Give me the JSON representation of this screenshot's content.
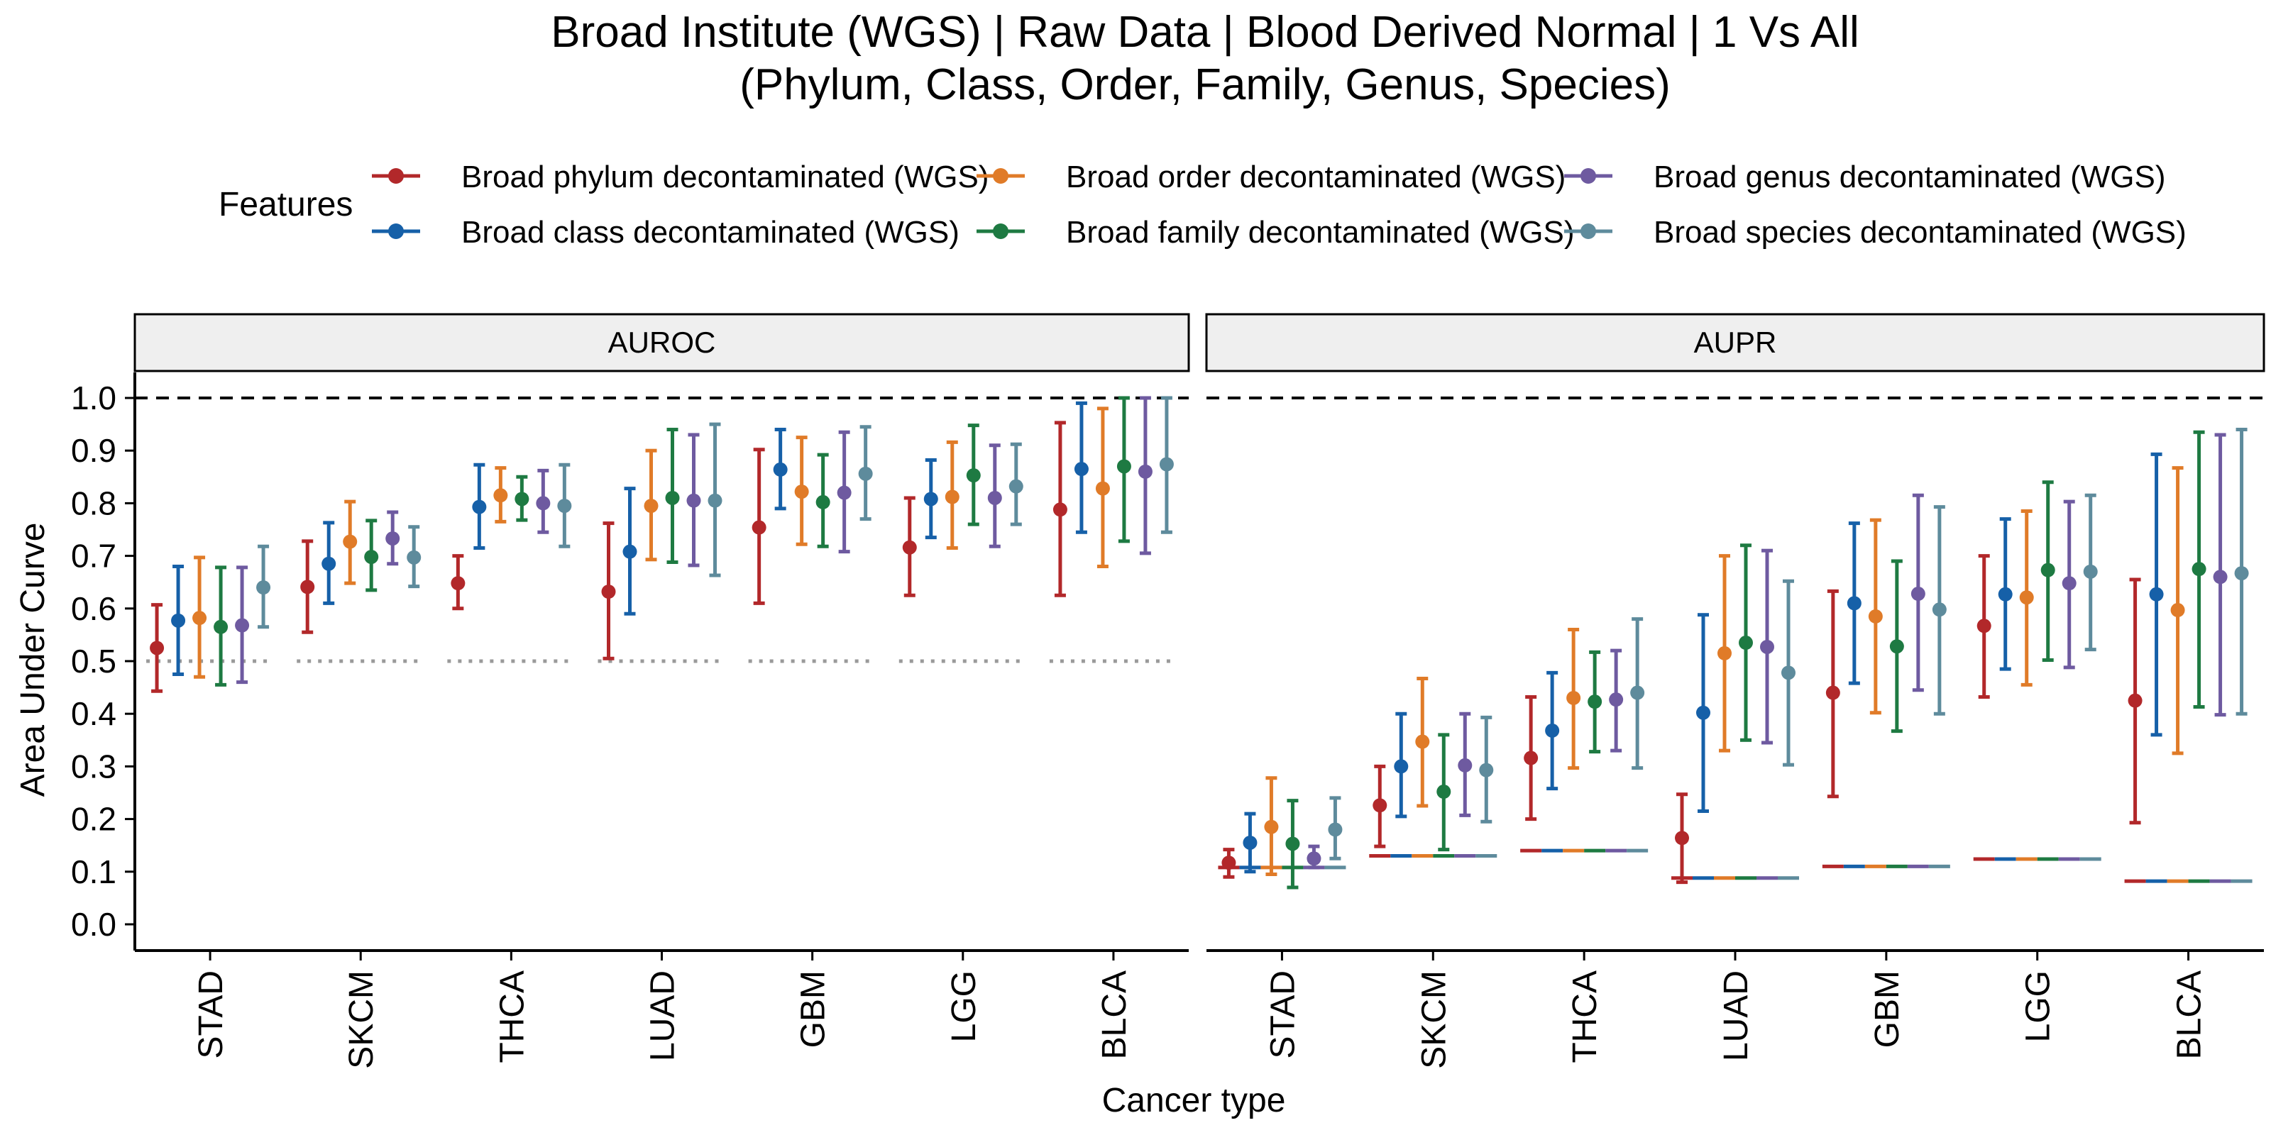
{
  "chart_data": {
    "type": "scatter",
    "title_line1": "Broad Institute (WGS) | Raw Data | Blood Derived Normal | 1 Vs All",
    "title_line2": "(Phylum, Class, Order, Family, Genus, Species)",
    "xlabel": "Cancer type",
    "ylabel": "Area Under Curve",
    "ylim": [
      0,
      1
    ],
    "yticks": [
      "0.0",
      "0.1",
      "0.2",
      "0.3",
      "0.4",
      "0.5",
      "0.6",
      "0.7",
      "0.8",
      "0.9",
      "1.0"
    ],
    "legend_title": "Features",
    "legend_position": "top",
    "categories": [
      "STAD",
      "SKCM",
      "THCA",
      "LUAD",
      "GBM",
      "LGG",
      "BLCA"
    ],
    "series": [
      {
        "name": "Broad phylum decontaminated (WGS)",
        "color": "#B2282A"
      },
      {
        "name": "Broad class decontaminated (WGS)",
        "color": "#1660A8"
      },
      {
        "name": "Broad order decontaminated (WGS)",
        "color": "#E07B28"
      },
      {
        "name": "Broad family decontaminated (WGS)",
        "color": "#1E7A42"
      },
      {
        "name": "Broad genus decontaminated (WGS)",
        "color": "#6E5AA0"
      },
      {
        "name": "Broad species decontaminated (WGS)",
        "color": "#5E8B9C"
      }
    ],
    "reference_line": 1.0,
    "panels": [
      {
        "name": "AUROC",
        "baseline": [
          0.5,
          0.5,
          0.5,
          0.5,
          0.5,
          0.5,
          0.5
        ],
        "values": [
          [
            0.525,
            0.577,
            0.582,
            0.565,
            0.568,
            0.64
          ],
          [
            0.641,
            0.685,
            0.727,
            0.698,
            0.733,
            0.697
          ],
          [
            0.648,
            0.793,
            0.815,
            0.808,
            0.8,
            0.795
          ],
          [
            0.632,
            0.708,
            0.795,
            0.81,
            0.805,
            0.805
          ],
          [
            0.754,
            0.864,
            0.822,
            0.802,
            0.82,
            0.856
          ],
          [
            0.716,
            0.808,
            0.812,
            0.853,
            0.81,
            0.832
          ],
          [
            0.788,
            0.865,
            0.828,
            0.87,
            0.86,
            0.874
          ]
        ],
        "lower": [
          [
            0.443,
            0.475,
            0.47,
            0.455,
            0.46,
            0.565
          ],
          [
            0.555,
            0.61,
            0.648,
            0.635,
            0.685,
            0.642
          ],
          [
            0.6,
            0.715,
            0.765,
            0.768,
            0.745,
            0.718
          ],
          [
            0.505,
            0.59,
            0.693,
            0.688,
            0.682,
            0.663
          ],
          [
            0.61,
            0.79,
            0.722,
            0.718,
            0.708,
            0.77
          ],
          [
            0.625,
            0.735,
            0.715,
            0.76,
            0.718,
            0.76
          ],
          [
            0.625,
            0.745,
            0.68,
            0.728,
            0.705,
            0.745
          ]
        ],
        "upper": [
          [
            0.607,
            0.68,
            0.697,
            0.678,
            0.678,
            0.718
          ],
          [
            0.728,
            0.763,
            0.803,
            0.767,
            0.783,
            0.755
          ],
          [
            0.7,
            0.873,
            0.867,
            0.85,
            0.862,
            0.873
          ],
          [
            0.762,
            0.828,
            0.9,
            0.94,
            0.93,
            0.95
          ],
          [
            0.902,
            0.94,
            0.925,
            0.892,
            0.935,
            0.945
          ],
          [
            0.81,
            0.882,
            0.916,
            0.948,
            0.91,
            0.912
          ],
          [
            0.953,
            0.99,
            0.98,
            1.0,
            1.0,
            1.0
          ]
        ]
      },
      {
        "name": "AUPR",
        "baseline": [
          0.108,
          0.13,
          0.14,
          0.088,
          0.11,
          0.124,
          0.082
        ],
        "values": [
          [
            0.117,
            0.155,
            0.185,
            0.153,
            0.125,
            0.18
          ],
          [
            0.226,
            0.3,
            0.347,
            0.252,
            0.302,
            0.293
          ],
          [
            0.316,
            0.368,
            0.43,
            0.423,
            0.427,
            0.44
          ],
          [
            0.164,
            0.402,
            0.515,
            0.535,
            0.527,
            0.478
          ],
          [
            0.44,
            0.61,
            0.585,
            0.528,
            0.628,
            0.598
          ],
          [
            0.567,
            0.627,
            0.621,
            0.673,
            0.648,
            0.67
          ],
          [
            0.425,
            0.627,
            0.597,
            0.675,
            0.66,
            0.667
          ]
        ],
        "lower": [
          [
            0.09,
            0.1,
            0.095,
            0.07,
            0.108,
            0.125
          ],
          [
            0.148,
            0.205,
            0.225,
            0.142,
            0.207,
            0.195
          ],
          [
            0.2,
            0.258,
            0.297,
            0.328,
            0.33,
            0.297
          ],
          [
            0.08,
            0.215,
            0.33,
            0.35,
            0.345,
            0.303
          ],
          [
            0.243,
            0.458,
            0.402,
            0.367,
            0.445,
            0.4
          ],
          [
            0.432,
            0.485,
            0.455,
            0.502,
            0.488,
            0.522
          ],
          [
            0.193,
            0.36,
            0.325,
            0.413,
            0.398,
            0.4
          ]
        ],
        "upper": [
          [
            0.142,
            0.21,
            0.278,
            0.235,
            0.148,
            0.24
          ],
          [
            0.3,
            0.4,
            0.467,
            0.36,
            0.4,
            0.393
          ],
          [
            0.432,
            0.478,
            0.56,
            0.517,
            0.52,
            0.58
          ],
          [
            0.247,
            0.588,
            0.7,
            0.72,
            0.71,
            0.652
          ],
          [
            0.633,
            0.762,
            0.768,
            0.69,
            0.815,
            0.793
          ],
          [
            0.7,
            0.77,
            0.785,
            0.84,
            0.803,
            0.815
          ],
          [
            0.655,
            0.893,
            0.867,
            0.935,
            0.93,
            0.94
          ]
        ]
      }
    ]
  }
}
